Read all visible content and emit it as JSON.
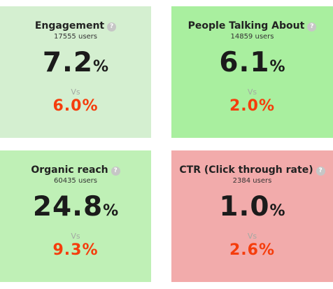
{
  "colors": {
    "card_light_green": "#d4efd0",
    "card_green": "#a9ef9f",
    "card_organic": "#bff0b6",
    "card_red": "#f2abab",
    "compare_value": "#f53d0c",
    "help_icon": "#c6c6c6"
  },
  "help_icon": {
    "icon": "question-circle-icon",
    "glyph": "?"
  },
  "cards": [
    {
      "title": "Engagement",
      "users_count": "17555",
      "users_suffix": "users",
      "value": "7.2",
      "value_unit": "%",
      "vs": "Vs",
      "compare": "6.0%",
      "bg": "#d4efd0"
    },
    {
      "title": "People Talking About",
      "users_count": "14859",
      "users_suffix": "users",
      "value": "6.1",
      "value_unit": "%",
      "vs": "Vs",
      "compare": "2.0%",
      "bg": "#a9ef9f"
    },
    {
      "title": "Organic reach",
      "users_count": "60435",
      "users_suffix": "users",
      "value": "24.8",
      "value_unit": "%",
      "vs": "Vs",
      "compare": "9.3%",
      "bg": "#bff0b6"
    },
    {
      "title": "CTR (Click through rate)",
      "users_count": "2384",
      "users_suffix": "users",
      "value": "1.0",
      "value_unit": "%",
      "vs": "Vs",
      "compare": "2.6%",
      "bg": "#f2abab"
    }
  ]
}
